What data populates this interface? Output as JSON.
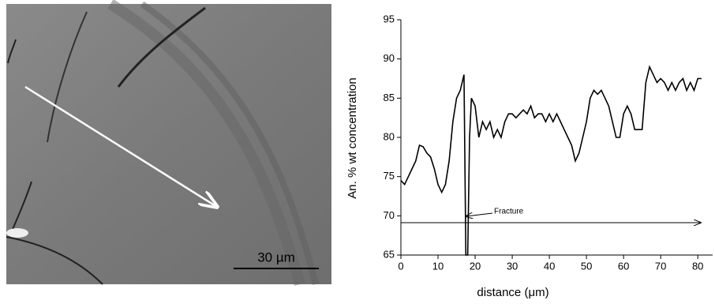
{
  "image": {
    "scale_bar": "30 µm"
  },
  "chart_data": {
    "type": "line",
    "x_label": "distance (μm)",
    "y_label": "An. % wt concentration",
    "annotation": "Fracture",
    "color": "#000000",
    "x": [
      0,
      1,
      2,
      3,
      4,
      5,
      6,
      7,
      8,
      9,
      10,
      11,
      12,
      13,
      14,
      15,
      16,
      17,
      17.5,
      18,
      18.5,
      19,
      20,
      21,
      22,
      23,
      24,
      25,
      26,
      27,
      28,
      29,
      30,
      31,
      32,
      33,
      34,
      35,
      36,
      37,
      38,
      39,
      40,
      41,
      42,
      43,
      44,
      45,
      46,
      47,
      48,
      49,
      50,
      51,
      52,
      53,
      54,
      55,
      56,
      57,
      58,
      59,
      60,
      61,
      62,
      63,
      64,
      65,
      66,
      67,
      68,
      69,
      70,
      71,
      72,
      73,
      74,
      75,
      76,
      77,
      78,
      79,
      80,
      81
    ],
    "values": [
      74.5,
      74,
      75,
      76,
      77,
      79,
      78.8,
      78,
      77.5,
      76,
      74,
      73,
      74,
      77,
      82,
      85,
      86,
      88,
      65,
      65,
      80,
      85,
      84,
      80,
      82,
      81,
      82,
      80,
      81,
      80,
      82,
      83,
      83,
      82.5,
      83,
      83.5,
      83,
      84,
      82.5,
      83,
      83,
      82,
      83,
      82,
      83,
      82,
      81,
      80,
      79,
      77,
      78,
      80,
      82,
      85,
      86,
      85.5,
      86,
      85,
      84,
      82,
      80,
      80,
      83,
      84,
      83,
      81,
      81,
      81,
      87,
      89,
      88,
      87,
      87.5,
      87,
      86,
      87,
      86,
      87,
      87.5,
      86,
      87,
      86,
      87.5,
      87.5
    ],
    "xlim": [
      0,
      84
    ],
    "ylim": [
      65,
      95
    ],
    "xticks": [
      0,
      10,
      20,
      30,
      40,
      50,
      60,
      70,
      80
    ],
    "yticks": [
      65,
      70,
      75,
      80,
      85,
      90,
      95
    ]
  }
}
